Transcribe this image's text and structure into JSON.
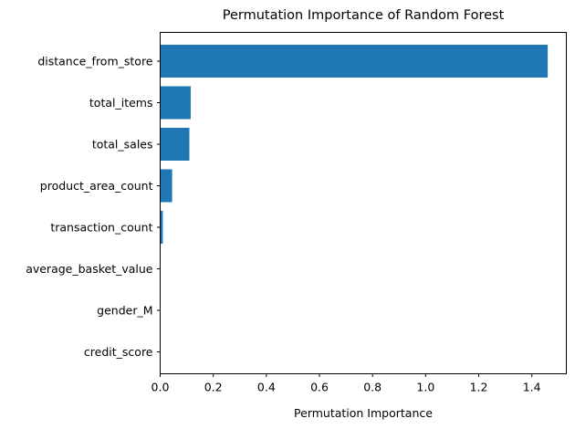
{
  "chart_data": {
    "type": "bar",
    "orientation": "horizontal",
    "title": "Permutation Importance of Random Forest",
    "xlabel": "Permutation Importance",
    "ylabel": "",
    "categories": [
      "distance_from_store",
      "total_items",
      "total_sales",
      "product_area_count",
      "transaction_count",
      "average_basket_value",
      "gender_M",
      "credit_score"
    ],
    "values": [
      1.46,
      0.115,
      0.11,
      0.045,
      0.01,
      0.0,
      0.0,
      0.0
    ],
    "xlim": [
      0,
      1.53
    ],
    "xticks": [
      0.0,
      0.2,
      0.4,
      0.6,
      0.8,
      1.0,
      1.2,
      1.4
    ],
    "xtick_labels": [
      "0.0",
      "0.2",
      "0.4",
      "0.6",
      "0.8",
      "1.0",
      "1.2",
      "1.4"
    ],
    "grid": false,
    "bar_color": "#1f77b4"
  }
}
